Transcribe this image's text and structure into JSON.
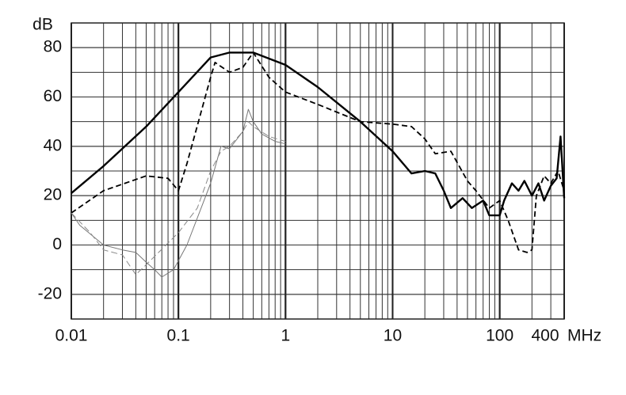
{
  "chart_data": {
    "type": "line",
    "y_unit": "dB",
    "x_unit": "MHz",
    "log_x": true,
    "grid": true,
    "xlim": [
      0.01,
      400
    ],
    "ylim": [
      -30,
      90
    ],
    "xticks": [
      0.01,
      0.1,
      1,
      10,
      100,
      400
    ],
    "yticks": [
      -20,
      0,
      20,
      40,
      60,
      80
    ],
    "series": [
      {
        "color": "#000000",
        "style": "thick",
        "x": [
          0.01,
          0.02,
          0.05,
          0.1,
          0.2,
          0.3,
          0.5,
          1,
          2,
          5,
          10,
          15,
          20,
          25,
          30,
          35,
          45,
          55,
          70,
          80,
          100,
          110,
          130,
          150,
          170,
          200,
          230,
          260,
          300,
          340,
          370,
          400
        ],
        "values": [
          21,
          32,
          48,
          62,
          76,
          78,
          78,
          73,
          64,
          50,
          38,
          29,
          30,
          29,
          22,
          15,
          19,
          15,
          18,
          12,
          12,
          18,
          25,
          22,
          26,
          20,
          25,
          18,
          24,
          27,
          44,
          19
        ]
      },
      {
        "color": "#000000",
        "style": "dashed",
        "x": [
          0.01,
          0.02,
          0.05,
          0.08,
          0.1,
          0.12,
          0.2,
          0.22,
          0.3,
          0.4,
          0.5,
          0.7,
          1,
          2,
          5,
          10,
          15,
          20,
          25,
          35,
          50,
          60,
          80,
          100,
          120,
          150,
          180,
          200,
          220,
          260,
          300,
          350,
          400
        ],
        "values": [
          13,
          22,
          28,
          27,
          22,
          33,
          68,
          74,
          70,
          72,
          78,
          68,
          62,
          57,
          50,
          49,
          48,
          43,
          37,
          38,
          26,
          22,
          15,
          18,
          10,
          -2,
          -3,
          -2,
          20,
          28,
          25,
          30,
          22
        ]
      },
      {
        "color": "#777777",
        "style": "thin",
        "x": [
          0.01,
          0.012,
          0.02,
          0.03,
          0.04,
          0.05,
          0.06,
          0.07,
          0.09,
          0.12,
          0.2,
          0.25,
          0.3,
          0.4,
          0.45,
          0.5,
          0.6,
          0.8,
          1
        ],
        "values": [
          13,
          8,
          0,
          -2,
          -3,
          -7,
          -10,
          -13,
          -10,
          0,
          25,
          40,
          39,
          46,
          55,
          50,
          45,
          42,
          41
        ]
      },
      {
        "color": "#888888",
        "style": "thin-dashed",
        "x": [
          0.01,
          0.015,
          0.02,
          0.03,
          0.04,
          0.05,
          0.1,
          0.15,
          0.2,
          0.25,
          0.3,
          0.4,
          0.45,
          0.5,
          0.7,
          1
        ],
        "values": [
          13,
          5,
          -2,
          -4,
          -12,
          -8,
          5,
          15,
          30,
          38,
          40,
          46,
          50,
          48,
          44,
          42
        ]
      }
    ]
  }
}
